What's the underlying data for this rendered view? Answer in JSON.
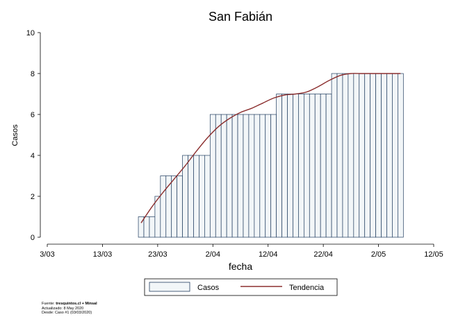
{
  "chart_data": {
    "type": "bar",
    "title": "San Fabián",
    "xlabel": "fecha",
    "ylabel": "Casos",
    "ylim": [
      0,
      10
    ],
    "yticks": [
      0,
      2,
      4,
      6,
      8,
      10
    ],
    "xlim_days": [
      0,
      70
    ],
    "xticks": [
      {
        "day": 0,
        "label": "3/03"
      },
      {
        "day": 10,
        "label": "13/03"
      },
      {
        "day": 20,
        "label": "23/03"
      },
      {
        "day": 30,
        "label": "2/04"
      },
      {
        "day": 40,
        "label": "12/04"
      },
      {
        "day": 50,
        "label": "22/04"
      },
      {
        "day": 60,
        "label": "2/05"
      },
      {
        "day": 70,
        "label": "12/05"
      }
    ],
    "grid": false,
    "legend_position": "bottom",
    "series": [
      {
        "name": "Casos",
        "kind": "bar",
        "color": "#f2f6f8",
        "edge_color": "#1f3b5e",
        "x": [
          "20/03",
          "21/03",
          "22/03",
          "23/03",
          "24/03",
          "25/03",
          "26/03",
          "27/03",
          "28/03",
          "29/03",
          "30/03",
          "31/03",
          "1/04",
          "2/04",
          "3/04",
          "4/04",
          "5/04",
          "6/04",
          "7/04",
          "8/04",
          "9/04",
          "10/04",
          "11/04",
          "12/04",
          "13/04",
          "14/04",
          "15/04",
          "16/04",
          "17/04",
          "18/04",
          "19/04",
          "20/04",
          "21/04",
          "22/04",
          "23/04",
          "24/04",
          "25/04",
          "26/04",
          "27/04",
          "28/04",
          "29/04",
          "30/04",
          "1/05",
          "2/05",
          "3/05",
          "4/05",
          "5/05",
          "6/05"
        ],
        "values": [
          1,
          1,
          1,
          2,
          3,
          3,
          3,
          3,
          4,
          4,
          4,
          4,
          4,
          6,
          6,
          6,
          6,
          6,
          6,
          6,
          6,
          6,
          6,
          6,
          6,
          7,
          7,
          7,
          7,
          7,
          7,
          7,
          7,
          7,
          7,
          8,
          8,
          8,
          8,
          8,
          8,
          8,
          8,
          8,
          8,
          8,
          8,
          8
        ]
      },
      {
        "name": "Tendencia",
        "kind": "line",
        "color": "#8b2e2e",
        "x": [
          "20/03",
          "22/03",
          "24/03",
          "26/03",
          "28/03",
          "30/03",
          "1/04",
          "3/04",
          "5/04",
          "7/04",
          "9/04",
          "11/04",
          "13/04",
          "15/04",
          "17/04",
          "19/04",
          "21/04",
          "23/04",
          "25/04",
          "27/04",
          "29/04",
          "1/05",
          "3/05",
          "5/05",
          "6/05"
        ],
        "values": [
          0.7,
          1.5,
          2.2,
          2.85,
          3.5,
          4.2,
          4.85,
          5.4,
          5.8,
          6.1,
          6.3,
          6.55,
          6.8,
          6.95,
          7.0,
          7.1,
          7.35,
          7.65,
          7.9,
          8.0,
          8.0,
          8.0,
          8.0,
          8.0,
          8.0
        ]
      }
    ]
  },
  "source": {
    "line1_prefix": "Fuente: ",
    "line1_bold": "tresquintos.cl + Minsal",
    "line2": "Actualizado: 8 May 2020",
    "line3": "Desde: Caso #1  (03/03/2020)"
  }
}
